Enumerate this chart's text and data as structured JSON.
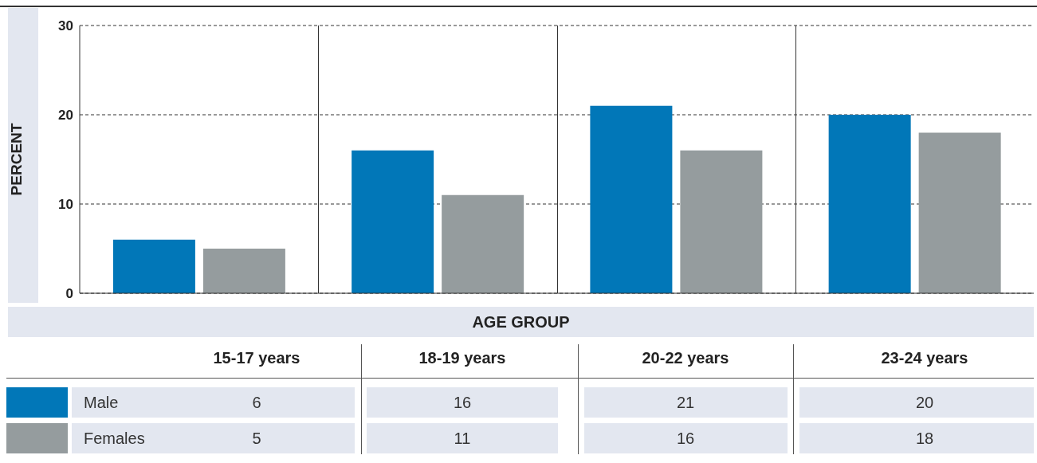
{
  "chart_data": {
    "type": "bar",
    "ylabel": "PERCENT",
    "xlabel": "AGE GROUP",
    "categories": [
      "15-17 years",
      "18-19 years",
      "20-22 years",
      "23-24 years"
    ],
    "series": [
      {
        "name": "Male",
        "color": "#0177b8",
        "values": [
          6,
          16,
          21,
          20
        ]
      },
      {
        "name": "Females",
        "color": "#959c9e",
        "values": [
          5,
          11,
          16,
          18
        ]
      }
    ],
    "ylim": [
      0,
      30
    ],
    "yticks": [
      0,
      10,
      20,
      30
    ],
    "grid": "y",
    "legend": "bottom left",
    "line_style": "dashed",
    "data_labels": true
  }
}
